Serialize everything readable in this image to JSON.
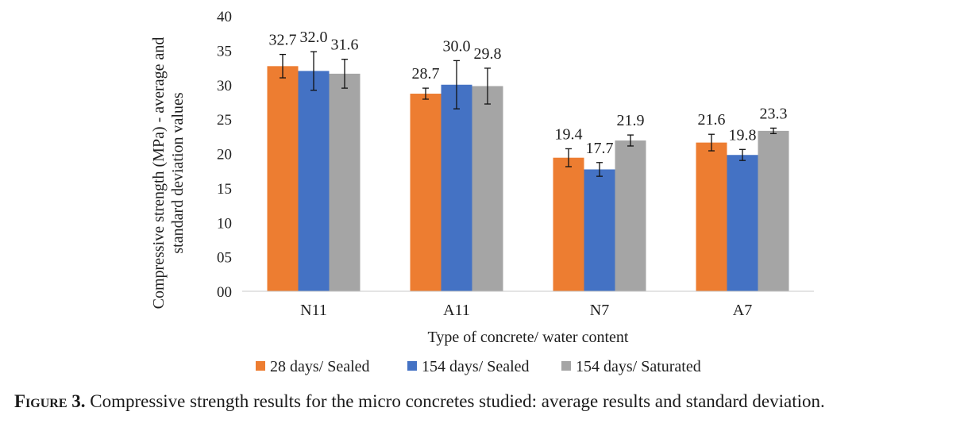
{
  "chart_data": {
    "type": "bar",
    "ylabel": [
      "Compressive strength (MPa) - average and",
      "standard deviation values"
    ],
    "xlabel": "Type of concrete/ water content",
    "ylim": [
      0,
      40
    ],
    "y_ticks": [
      {
        "value": 0,
        "label": "00"
      },
      {
        "value": 5,
        "label": "05"
      },
      {
        "value": 10,
        "label": "10"
      },
      {
        "value": 15,
        "label": "15"
      },
      {
        "value": 20,
        "label": "20"
      },
      {
        "value": 25,
        "label": "25"
      },
      {
        "value": 30,
        "label": "30"
      },
      {
        "value": 35,
        "label": "35"
      },
      {
        "value": 40,
        "label": "40"
      }
    ],
    "grid": false,
    "legend_position": "bottom",
    "categories": [
      "N11",
      "A11",
      "N7",
      "A7"
    ],
    "series": [
      {
        "name": "28 days/ Sealed",
        "color": "#ed7d31",
        "values": [
          32.7,
          28.7,
          19.4,
          21.6
        ],
        "labels": [
          "32.7",
          "28.7",
          "19.4",
          "21.6"
        ],
        "errors": [
          1.7,
          0.8,
          1.3,
          1.2
        ]
      },
      {
        "name": "154 days/ Sealed",
        "color": "#4472c4",
        "values": [
          32.0,
          30.0,
          17.7,
          19.8
        ],
        "labels": [
          "32.0",
          "30.0",
          "17.7",
          "19.8"
        ],
        "errors": [
          2.8,
          3.5,
          1.0,
          0.8
        ]
      },
      {
        "name": "154 days/ Saturated",
        "color": "#a5a5a5",
        "values": [
          31.6,
          29.8,
          21.9,
          23.3
        ],
        "labels": [
          "31.6",
          "29.8",
          "21.9",
          "23.3"
        ],
        "errors": [
          2.1,
          2.6,
          0.8,
          0.4
        ]
      }
    ]
  },
  "caption": {
    "label": "Figure 3.",
    "text": " Compressive strength results for the micro concretes studied: average results and standard deviation."
  }
}
